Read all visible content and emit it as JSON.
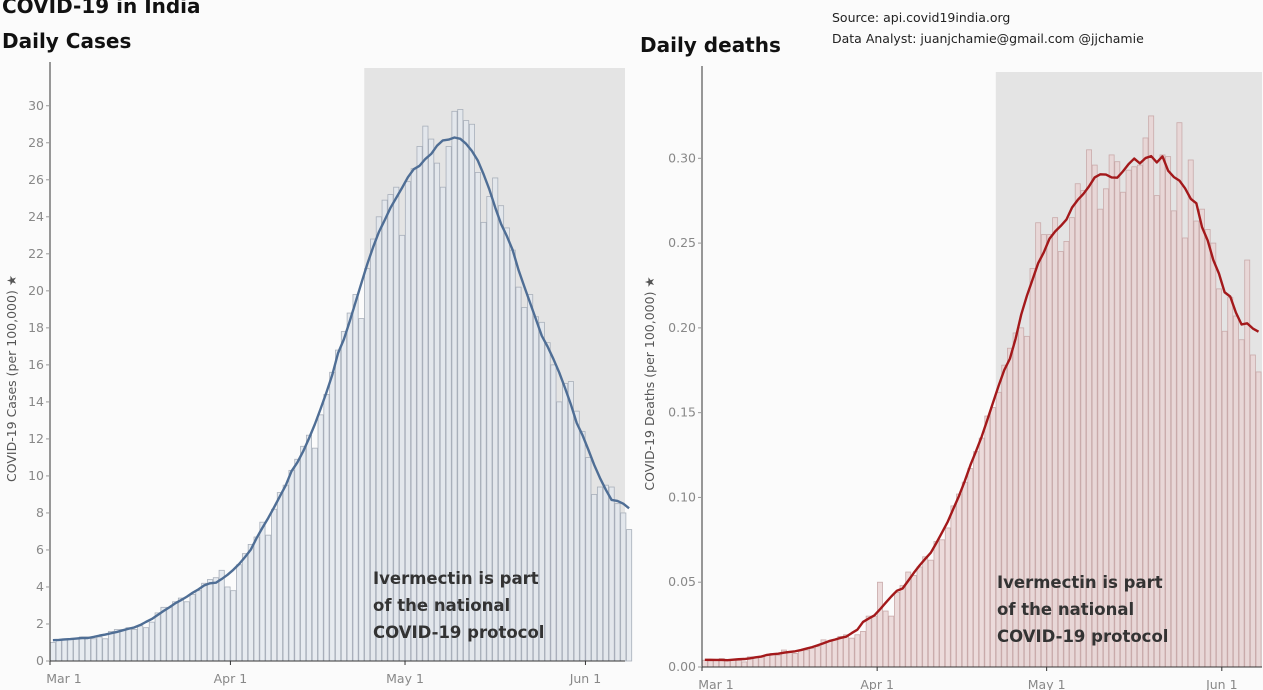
{
  "header": {
    "title": "COVID-19 in India",
    "source": "Source: api.covid19india.org",
    "analyst": "Data Analyst:  juanjchamie@gmail.com @jjchamie"
  },
  "chart_data": [
    {
      "type": "bar",
      "title": "Daily Cases",
      "xlabel": "",
      "ylabel": "COVID-19 Cases (per 100,000) ★",
      "start_date": "Mar 1",
      "x_ticks": [
        {
          "label": "Mar 1",
          "day": 0
        },
        {
          "label": "Apr 1",
          "day": 31
        },
        {
          "label": "May 1",
          "day": 61
        },
        {
          "label": "Jun 1",
          "day": 92
        }
      ],
      "y_ticks": [
        0,
        2,
        4,
        6,
        8,
        10,
        12,
        14,
        16,
        18,
        20,
        22,
        24,
        26,
        28,
        30
      ],
      "ylim": [
        0,
        31.5
      ],
      "shaded_from_day": 54,
      "annotation": [
        "Ivermectin is part",
        "of the national",
        "COVID-19 protocol"
      ],
      "bar_color": "#e3e7ed",
      "line_color": "#4f6e95",
      "values": [
        1.0,
        1.1,
        1.2,
        1.2,
        1.2,
        1.3,
        1.3,
        1.2,
        1.3,
        1.2,
        1.6,
        1.7,
        1.7,
        1.8,
        1.7,
        1.9,
        1.8,
        2.1,
        2.6,
        2.9,
        2.9,
        3.2,
        3.4,
        3.2,
        3.6,
        3.8,
        4.2,
        4.4,
        4.5,
        4.9,
        4.0,
        3.8,
        5.2,
        5.8,
        6.3,
        6.7,
        7.5,
        6.8,
        8.2,
        9.1,
        9.5,
        10.3,
        10.9,
        11.6,
        12.2,
        11.5,
        13.3,
        14.4,
        15.6,
        16.8,
        17.8,
        18.8,
        19.8,
        18.5,
        21.2,
        22.8,
        24.0,
        24.9,
        25.2,
        25.6,
        23.0,
        25.9,
        26.6,
        27.8,
        28.9,
        28.2,
        26.9,
        25.6,
        27.8,
        29.7,
        29.8,
        29.2,
        29.0,
        26.4,
        23.7,
        25.1,
        26.1,
        24.6,
        23.4,
        22.2,
        20.2,
        19.1,
        19.8,
        18.6,
        18.3,
        17.2,
        16.0,
        14.0,
        15.0,
        15.1,
        13.5,
        12.4,
        11.0,
        9.0,
        9.4,
        9.5,
        9.4,
        8.5,
        8.0,
        7.1
      ]
    },
    {
      "type": "bar",
      "title": "Daily deaths",
      "xlabel": "",
      "ylabel": "COVID-19 Deaths (per 100,000) ★",
      "start_date": "Mar 1",
      "x_ticks": [
        {
          "label": "Mar 1",
          "day": 0
        },
        {
          "label": "Apr 1",
          "day": 31
        },
        {
          "label": "May 1",
          "day": 61
        },
        {
          "label": "Jun 1",
          "day": 92
        }
      ],
      "y_ticks": [
        "0.00",
        "0.05",
        "0.10",
        "0.15",
        "0.20",
        "0.25",
        "0.30"
      ],
      "ylim": [
        0,
        0.345
      ],
      "shaded_from_day": 52,
      "annotation": [
        "Ivermectin is part",
        "of the national",
        "COVID-19 protocol"
      ],
      "bar_color": "#e9d5d5",
      "line_color": "#a3191b",
      "values": [
        0.004,
        0.004,
        0.004,
        0.005,
        0.004,
        0.004,
        0.004,
        0.003,
        0.006,
        0.006,
        0.006,
        0.007,
        0.008,
        0.007,
        0.01,
        0.009,
        0.008,
        0.01,
        0.01,
        0.011,
        0.012,
        0.016,
        0.015,
        0.016,
        0.018,
        0.019,
        0.017,
        0.019,
        0.021,
        0.03,
        0.03,
        0.05,
        0.033,
        0.03,
        0.044,
        0.048,
        0.056,
        0.054,
        0.059,
        0.065,
        0.063,
        0.074,
        0.075,
        0.082,
        0.095,
        0.102,
        0.109,
        0.117,
        0.127,
        0.135,
        0.148,
        0.153,
        0.162,
        0.178,
        0.188,
        0.197,
        0.2,
        0.195,
        0.235,
        0.262,
        0.255,
        0.255,
        0.265,
        0.245,
        0.251,
        0.265,
        0.285,
        0.281,
        0.305,
        0.296,
        0.27,
        0.282,
        0.302,
        0.298,
        0.28,
        0.293,
        0.295,
        0.296,
        0.312,
        0.325,
        0.278,
        0.302,
        0.301,
        0.269,
        0.321,
        0.253,
        0.299,
        0.263,
        0.27,
        0.258,
        0.25,
        0.223,
        0.198,
        0.218,
        0.207,
        0.193,
        0.24,
        0.184,
        0.174
      ]
    }
  ]
}
